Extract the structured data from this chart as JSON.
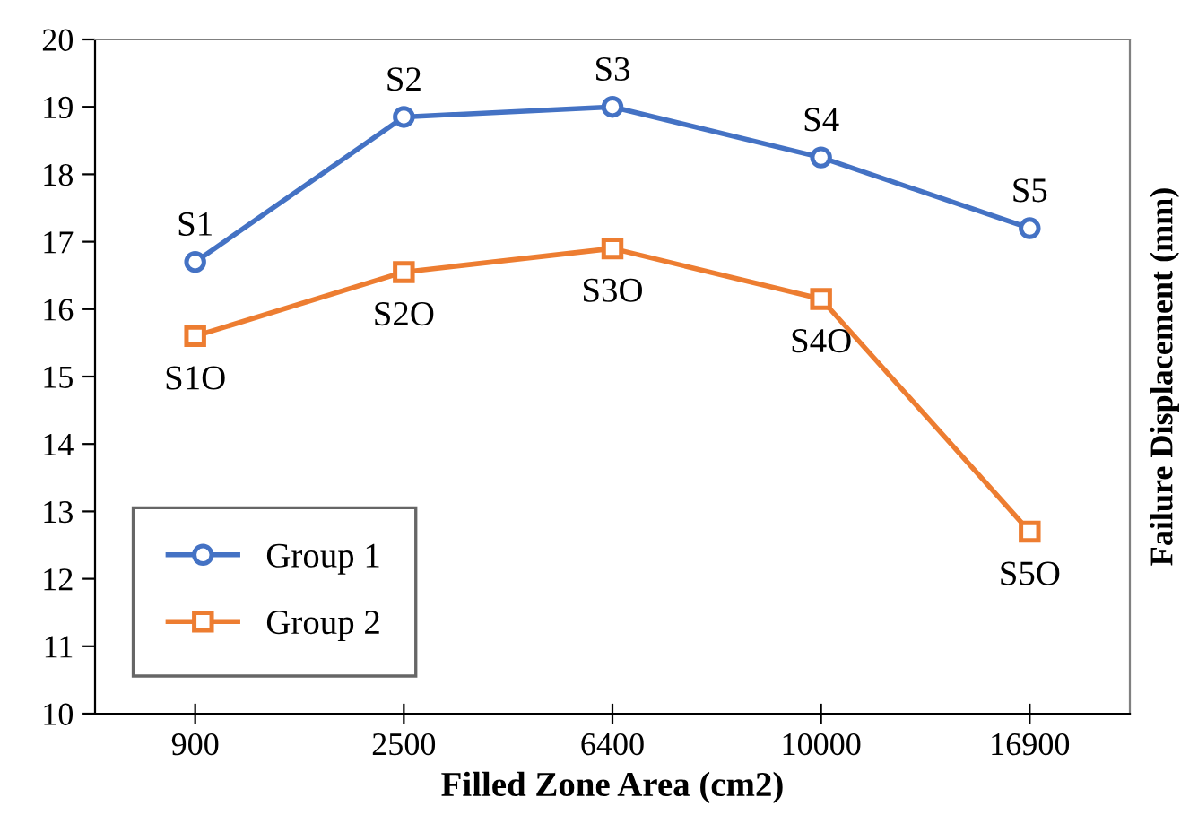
{
  "chart_data": {
    "type": "line",
    "xlabel": "Filled Zone Area (cm2)",
    "ylabel": "Failure Displacement (mm)",
    "categories": [
      "900",
      "2500",
      "6400",
      "10000",
      "16900"
    ],
    "series": [
      {
        "name": "Group 1",
        "color": "#4472c4",
        "marker": "circle",
        "values": [
          16.7,
          18.85,
          19.0,
          18.25,
          17.2
        ]
      },
      {
        "name": "Group 2",
        "color": "#ed7d31",
        "marker": "square",
        "values": [
          15.6,
          16.55,
          16.9,
          16.15,
          12.7
        ]
      }
    ],
    "ylim": [
      10,
      20
    ],
    "yticks": [
      10,
      11,
      12,
      13,
      14,
      15,
      16,
      17,
      18,
      19,
      20
    ],
    "grid": false,
    "legend": "bottom left",
    "annotations": [
      {
        "text": "S1",
        "x": "900",
        "y": 16.7
      },
      {
        "text": "S2",
        "x": "2500",
        "y": 18.85
      },
      {
        "text": "S3",
        "x": "6400",
        "y": 19.0
      },
      {
        "text": "S4",
        "x": "10000",
        "y": 18.25
      },
      {
        "text": "S5",
        "x": "16900",
        "y": 17.2
      },
      {
        "text": "S1O",
        "x": "900",
        "y": 15.6
      },
      {
        "text": "S2O",
        "x": "2500",
        "y": 16.55
      },
      {
        "text": "S3O",
        "x": "6400",
        "y": 16.9
      },
      {
        "text": "S4O",
        "x": "10000",
        "y": 16.15
      },
      {
        "text": "S5O",
        "x": "16900",
        "y": 12.7
      }
    ]
  }
}
